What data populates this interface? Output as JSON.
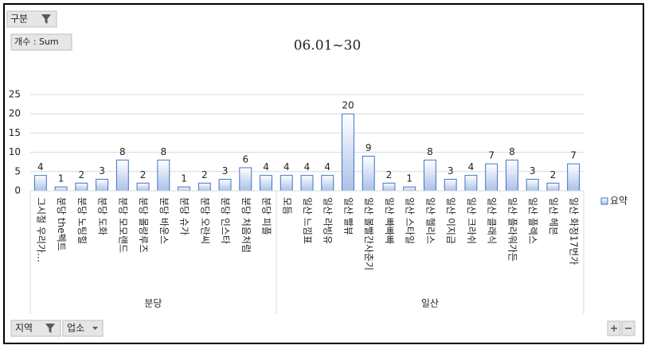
{
  "chart_data": {
    "type": "bar",
    "title": "06.01~30",
    "categories": [
      "그시절 우리가…",
      "분당 the펙트",
      "분당 노팅힐",
      "분당 도화",
      "분당 모모랜드",
      "분당 몰랑루즈",
      "분당 바운스",
      "분당 슈가",
      "분당 오란씨",
      "분당 인스타",
      "분당 처음처럼",
      "분당 피플",
      "모듬",
      "일산 느낌표",
      "일산 라빙유",
      "일산 빨뷰",
      "일산 볼빨간사춘기",
      "일산 빠빠빠",
      "일산 스타일",
      "일산 헬리스",
      "일산 이지금",
      "일산 크라쉬",
      "일산 클래식",
      "일산 플라워가든",
      "일산 플렉스",
      "일산 헤븐",
      "일산 화정17번가"
    ],
    "groups": [
      {
        "name": "분당",
        "count": 12
      },
      {
        "name": "일산",
        "count": 15
      }
    ],
    "series": [
      {
        "name": "요약",
        "color": "#4472c4",
        "values": [
          4,
          1,
          2,
          3,
          8,
          2,
          8,
          1,
          2,
          3,
          6,
          4,
          4,
          4,
          4,
          20,
          9,
          2,
          1,
          8,
          3,
          4,
          7,
          8,
          3,
          2,
          7
        ]
      }
    ],
    "ylim": [
      0,
      25
    ],
    "yticks": [
      0,
      5,
      10,
      15,
      20,
      25
    ],
    "grid": true,
    "legend": "right"
  },
  "pivot_buttons": {
    "filter_field": "구분",
    "value_field": "개수 : Sum",
    "axis_fields": [
      "지역",
      "업소"
    ]
  }
}
